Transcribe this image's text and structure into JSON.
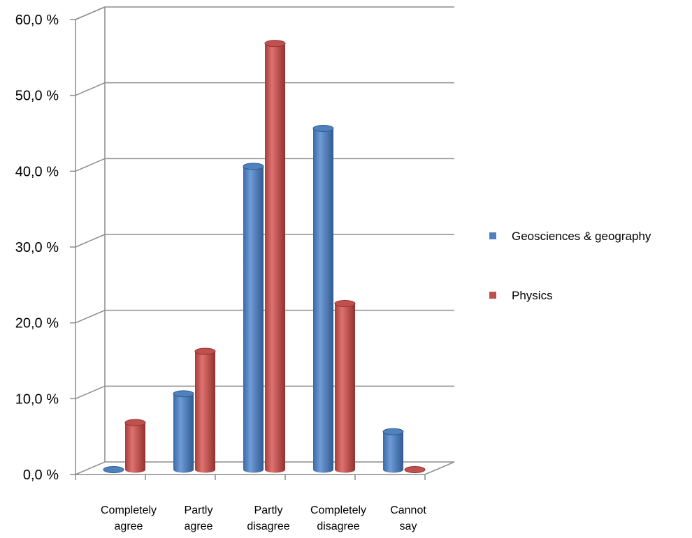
{
  "chart_data": {
    "type": "bar",
    "categories": [
      [
        "Completely",
        "agree"
      ],
      [
        "Partly",
        "agree"
      ],
      [
        "Partly",
        "disagree"
      ],
      [
        "Completely",
        "disagree"
      ],
      [
        "Cannot",
        "say"
      ]
    ],
    "series": [
      {
        "name": "Geosciences & geography",
        "color": "#4f81bd",
        "values": [
          0.0,
          10.0,
          40.0,
          45.0,
          5.0
        ]
      },
      {
        "name": "Physics",
        "color": "#c0504d",
        "values": [
          6.2,
          15.6,
          56.2,
          21.9,
          0.0
        ]
      }
    ],
    "yticks": [
      "0,0 %",
      "10,0 %",
      "20,0 %",
      "30,0 %",
      "40,0 %",
      "50,0 %",
      "60,0 %"
    ],
    "ylim": [
      0,
      60
    ],
    "grid": true,
    "legend_position": "right",
    "title": "",
    "xlabel": "",
    "ylabel": ""
  }
}
